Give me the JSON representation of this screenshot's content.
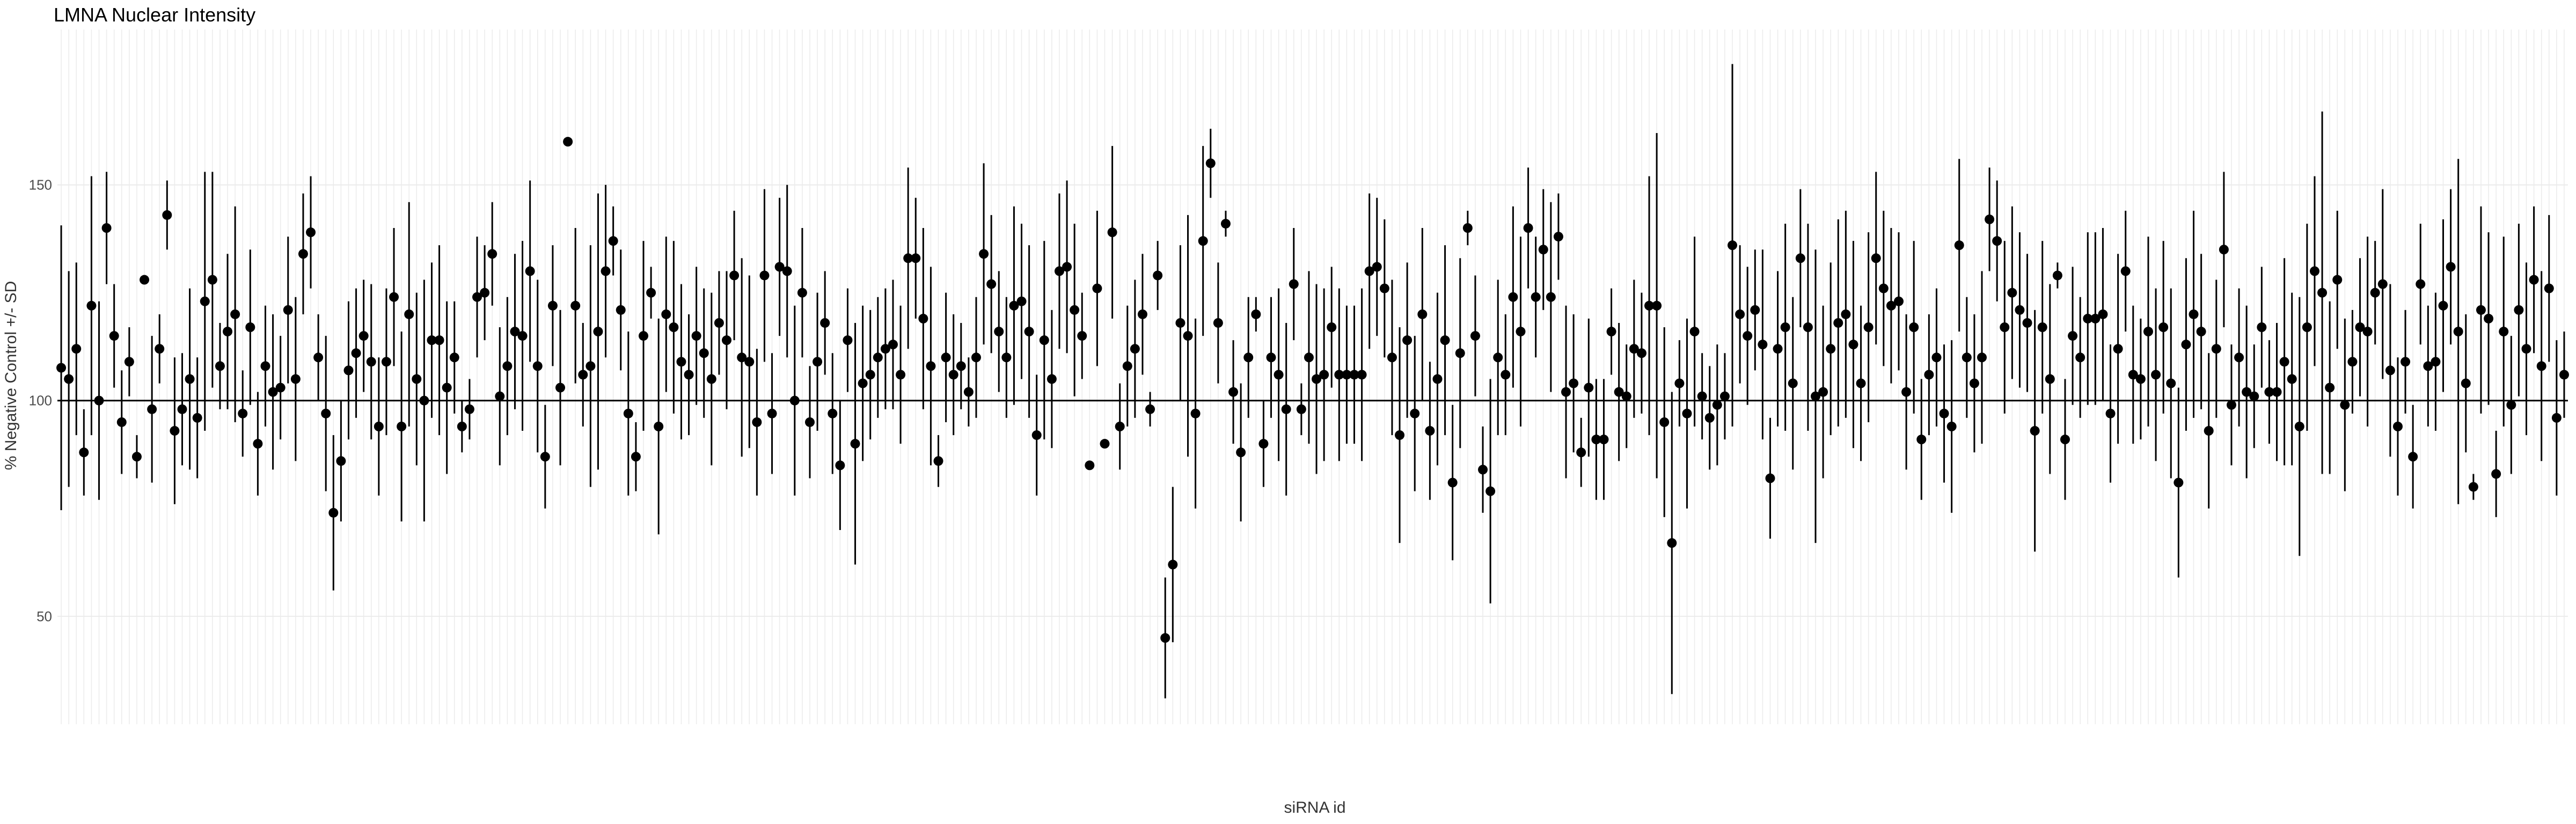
{
  "chart_data": {
    "type": "errorbar",
    "title": "LMNA Nuclear Intensity",
    "x_label": "siRNA id",
    "y_label": "% Negative Control +/- SD",
    "ylim": [
      25,
      186
    ],
    "yticks": [
      50,
      100,
      150
    ],
    "grid": true,
    "hline": 100,
    "color": "#000000",
    "points": [
      [
        107.6,
        33
      ],
      [
        105,
        25
      ],
      [
        112,
        20
      ],
      [
        88,
        10
      ],
      [
        122,
        30
      ],
      [
        100,
        23
      ],
      [
        140,
        13
      ],
      [
        115,
        12
      ],
      [
        95,
        12
      ],
      [
        109,
        8
      ],
      [
        87,
        5
      ],
      [
        128,
        0
      ],
      [
        98,
        17
      ],
      [
        112,
        8
      ],
      [
        143,
        8
      ],
      [
        93,
        17
      ],
      [
        98,
        13
      ],
      [
        105,
        21
      ],
      [
        96,
        14
      ],
      [
        123,
        30
      ],
      [
        128,
        25
      ],
      [
        108,
        10
      ],
      [
        116,
        18
      ],
      [
        120,
        25
      ],
      [
        97,
        10
      ],
      [
        117,
        18
      ],
      [
        90,
        12
      ],
      [
        108,
        14
      ],
      [
        102,
        18
      ],
      [
        103,
        12
      ],
      [
        121,
        17
      ],
      [
        105,
        19
      ],
      [
        134,
        14
      ],
      [
        139,
        13
      ],
      [
        110,
        10
      ],
      [
        97,
        18
      ],
      [
        74,
        18
      ],
      [
        86,
        14
      ],
      [
        107,
        16
      ],
      [
        111,
        15
      ],
      [
        115,
        13
      ],
      [
        109,
        18
      ],
      [
        94,
        16
      ],
      [
        109,
        17
      ],
      [
        124,
        16
      ],
      [
        94,
        22
      ],
      [
        120,
        26
      ],
      [
        105,
        20
      ],
      [
        100,
        28
      ],
      [
        114,
        18
      ],
      [
        114,
        22
      ],
      [
        103,
        20
      ],
      [
        110,
        13
      ],
      [
        94,
        6
      ],
      [
        98,
        7
      ],
      [
        124,
        14
      ],
      [
        125,
        11
      ],
      [
        134,
        12
      ],
      [
        101,
        16
      ],
      [
        108,
        16
      ],
      [
        116,
        18
      ],
      [
        115,
        22
      ],
      [
        130,
        21
      ],
      [
        108,
        20
      ],
      [
        87,
        12
      ],
      [
        122,
        14
      ],
      [
        103,
        18
      ],
      [
        160,
        0
      ],
      [
        122,
        18
      ],
      [
        106,
        12
      ],
      [
        108,
        28
      ],
      [
        116,
        32
      ],
      [
        130,
        20
      ],
      [
        137,
        8
      ],
      [
        121,
        14
      ],
      [
        97,
        19
      ],
      [
        87,
        8
      ],
      [
        115,
        22
      ],
      [
        125,
        6
      ],
      [
        94,
        25
      ],
      [
        120,
        18
      ],
      [
        117,
        20
      ],
      [
        109,
        18
      ],
      [
        106,
        14
      ],
      [
        115,
        16
      ],
      [
        111,
        15
      ],
      [
        105,
        20
      ],
      [
        118,
        12
      ],
      [
        114,
        16
      ],
      [
        129,
        15
      ],
      [
        110,
        23
      ],
      [
        109,
        20
      ],
      [
        95,
        17
      ],
      [
        129,
        20
      ],
      [
        97,
        14
      ],
      [
        131,
        16
      ],
      [
        130,
        20
      ],
      [
        100,
        22
      ],
      [
        125,
        15
      ],
      [
        95,
        13
      ],
      [
        109,
        16
      ],
      [
        118,
        12
      ],
      [
        97,
        14
      ],
      [
        85,
        15
      ],
      [
        114,
        12
      ],
      [
        90,
        28
      ],
      [
        104,
        18
      ],
      [
        106,
        15
      ],
      [
        110,
        14
      ],
      [
        112,
        14
      ],
      [
        113,
        15
      ],
      [
        106,
        16
      ],
      [
        133,
        21
      ],
      [
        133,
        14
      ],
      [
        119,
        21
      ],
      [
        108,
        23
      ],
      [
        86,
        6
      ],
      [
        110,
        15
      ],
      [
        106,
        14
      ],
      [
        108,
        10
      ],
      [
        102,
        8
      ],
      [
        110,
        14
      ],
      [
        134,
        21
      ],
      [
        127,
        16
      ],
      [
        116,
        14
      ],
      [
        110,
        14
      ],
      [
        122,
        23
      ],
      [
        123,
        18
      ],
      [
        116,
        20
      ],
      [
        92,
        14
      ],
      [
        114,
        23
      ],
      [
        105,
        16
      ],
      [
        130,
        18
      ],
      [
        131,
        20
      ],
      [
        121,
        20
      ],
      [
        115,
        10
      ],
      [
        85,
        0
      ],
      [
        126,
        18
      ],
      [
        90,
        0
      ],
      [
        139,
        20
      ],
      [
        94,
        10
      ],
      [
        108,
        14
      ],
      [
        112,
        16
      ],
      [
        120,
        14
      ],
      [
        98,
        4
      ],
      [
        129,
        8
      ],
      [
        45,
        14
      ],
      [
        62,
        18
      ],
      [
        118,
        18
      ],
      [
        115,
        28
      ],
      [
        97,
        22
      ],
      [
        137,
        22
      ],
      [
        155,
        8
      ],
      [
        118,
        14
      ],
      [
        141,
        3
      ],
      [
        102,
        12
      ],
      [
        88,
        16
      ],
      [
        110,
        14
      ],
      [
        120,
        4
      ],
      [
        90,
        10
      ],
      [
        110,
        14
      ],
      [
        106,
        20
      ],
      [
        98,
        20
      ],
      [
        127,
        13
      ],
      [
        98,
        6
      ],
      [
        110,
        20
      ],
      [
        105,
        22
      ],
      [
        106,
        20
      ],
      [
        117,
        14
      ],
      [
        106,
        20
      ],
      [
        106,
        16
      ],
      [
        106,
        16
      ],
      [
        106,
        20
      ],
      [
        130,
        18
      ],
      [
        131,
        16
      ],
      [
        126,
        16
      ],
      [
        110,
        18
      ],
      [
        92,
        25
      ],
      [
        114,
        18
      ],
      [
        97,
        18
      ],
      [
        120,
        20
      ],
      [
        93,
        16
      ],
      [
        105,
        20
      ],
      [
        114,
        22
      ],
      [
        81,
        18
      ],
      [
        111,
        22
      ],
      [
        140,
        4
      ],
      [
        115,
        14
      ],
      [
        84,
        10
      ],
      [
        79,
        26
      ],
      [
        110,
        18
      ],
      [
        106,
        14
      ],
      [
        124,
        21
      ],
      [
        116,
        22
      ],
      [
        140,
        14
      ],
      [
        124,
        14
      ],
      [
        135,
        14
      ],
      [
        124,
        22
      ],
      [
        138,
        10
      ],
      [
        102,
        20
      ],
      [
        104,
        16
      ],
      [
        88,
        8
      ],
      [
        103,
        16
      ],
      [
        91,
        14
      ],
      [
        91,
        14
      ],
      [
        116,
        10
      ],
      [
        102,
        16
      ],
      [
        101,
        12
      ],
      [
        112,
        16
      ],
      [
        111,
        14
      ],
      [
        122,
        30
      ],
      [
        122,
        40
      ],
      [
        95,
        22
      ],
      [
        67,
        35
      ],
      [
        104,
        10
      ],
      [
        97,
        22
      ],
      [
        116,
        22
      ],
      [
        101,
        10
      ],
      [
        96,
        12
      ],
      [
        99,
        14
      ],
      [
        101,
        10
      ],
      [
        136,
        42
      ],
      [
        120,
        16
      ],
      [
        115,
        16
      ],
      [
        121,
        14
      ],
      [
        113,
        22
      ],
      [
        82,
        14
      ],
      [
        112,
        18
      ],
      [
        117,
        24
      ],
      [
        104,
        20
      ],
      [
        133,
        16
      ],
      [
        117,
        24
      ],
      [
        101,
        34
      ],
      [
        102,
        20
      ],
      [
        112,
        20
      ],
      [
        118,
        24
      ],
      [
        120,
        24
      ],
      [
        113,
        24
      ],
      [
        104,
        18
      ],
      [
        117,
        22
      ],
      [
        133,
        20
      ],
      [
        126,
        18
      ],
      [
        122,
        18
      ],
      [
        123,
        16
      ],
      [
        102,
        18
      ],
      [
        117,
        20
      ],
      [
        91,
        14
      ],
      [
        106,
        14
      ],
      [
        110,
        16
      ],
      [
        97,
        16
      ],
      [
        94,
        20
      ],
      [
        136,
        20
      ],
      [
        110,
        14
      ],
      [
        104,
        16
      ],
      [
        110,
        20
      ],
      [
        142,
        12
      ],
      [
        137,
        14
      ],
      [
        117,
        20
      ],
      [
        125,
        20
      ],
      [
        121,
        18
      ],
      [
        118,
        16
      ],
      [
        93,
        28
      ],
      [
        117,
        20
      ],
      [
        105,
        22
      ],
      [
        129,
        3
      ],
      [
        91,
        14
      ],
      [
        115,
        16
      ],
      [
        110,
        14
      ],
      [
        119,
        20
      ],
      [
        119,
        20
      ],
      [
        120,
        20
      ],
      [
        97,
        16
      ],
      [
        112,
        22
      ],
      [
        130,
        14
      ],
      [
        106,
        16
      ],
      [
        105,
        14
      ],
      [
        116,
        22
      ],
      [
        106,
        20
      ],
      [
        117,
        20
      ],
      [
        104,
        22
      ],
      [
        81,
        22
      ],
      [
        113,
        20
      ],
      [
        120,
        24
      ],
      [
        116,
        18
      ],
      [
        93,
        18
      ],
      [
        112,
        16
      ],
      [
        135,
        18
      ],
      [
        99,
        14
      ],
      [
        110,
        16
      ],
      [
        102,
        20
      ],
      [
        101,
        12
      ],
      [
        117,
        14
      ],
      [
        102,
        12
      ],
      [
        102,
        16
      ],
      [
        109,
        24
      ],
      [
        105,
        20
      ],
      [
        94,
        30
      ],
      [
        117,
        24
      ],
      [
        130,
        22
      ],
      [
        125,
        42
      ],
      [
        103,
        20
      ],
      [
        128,
        16
      ],
      [
        99,
        20
      ],
      [
        109,
        12
      ],
      [
        117,
        16
      ],
      [
        116,
        22
      ],
      [
        125,
        12
      ],
      [
        127,
        22
      ],
      [
        107,
        20
      ],
      [
        94,
        16
      ],
      [
        109,
        12
      ],
      [
        87,
        12
      ],
      [
        127,
        14
      ],
      [
        108,
        14
      ],
      [
        109,
        16
      ],
      [
        122,
        20
      ],
      [
        131,
        18
      ],
      [
        116,
        40
      ],
      [
        104,
        16
      ],
      [
        80,
        3
      ],
      [
        121,
        24
      ],
      [
        119,
        20
      ],
      [
        83,
        10
      ],
      [
        116,
        22
      ],
      [
        99,
        16
      ],
      [
        121,
        20
      ],
      [
        112,
        20
      ],
      [
        128,
        17
      ],
      [
        108,
        22
      ],
      [
        126,
        17
      ],
      [
        96,
        18
      ],
      [
        106,
        10
      ]
    ]
  }
}
